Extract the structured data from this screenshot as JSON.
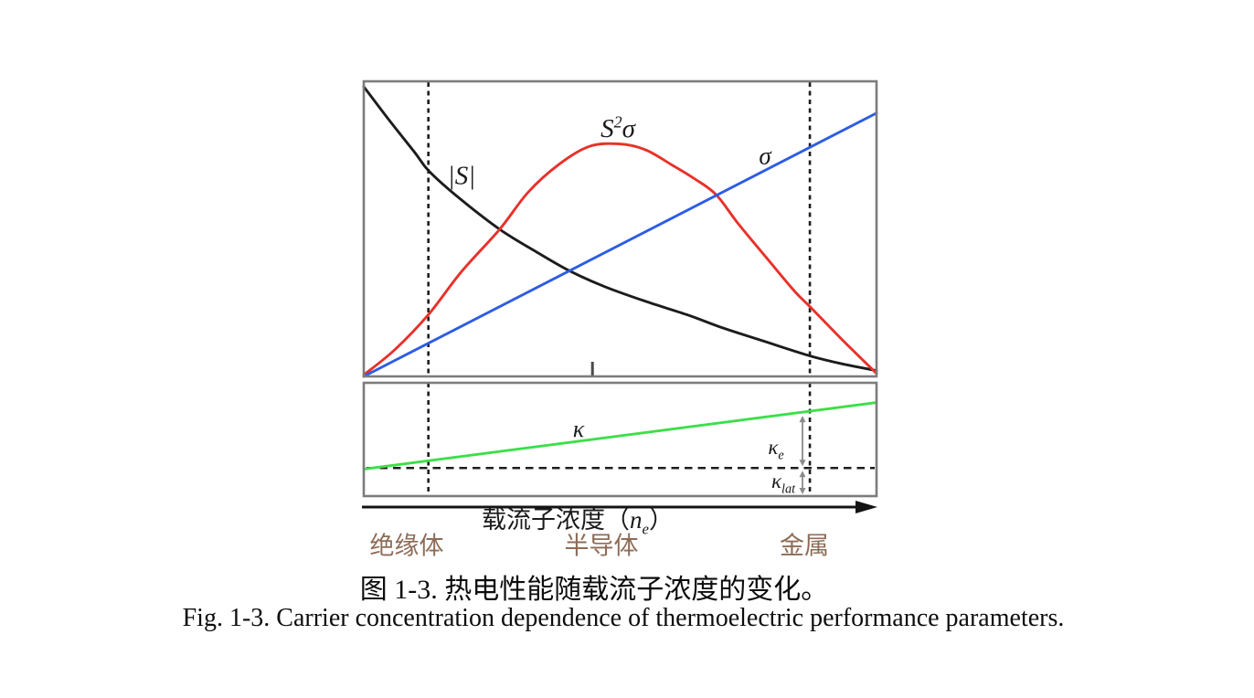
{
  "figure": {
    "caption_zh": "图 1-3. 热电性能随载流子浓度的变化。",
    "caption_en": "Fig. 1-3. Carrier concentration dependence of thermoelectric performance parameters."
  },
  "axis": {
    "xlabel_text": "载流子浓度",
    "paren_open": "（",
    "symbol": "n",
    "symbol_sub": "e",
    "paren_close": "）",
    "region_color": "#8e6c57",
    "regions": [
      {
        "label": "绝缘体"
      },
      {
        "label": "半导体"
      },
      {
        "label": "金属"
      }
    ]
  },
  "curve_labels": {
    "seebeck": "|S|",
    "power_factor": {
      "base": "S",
      "sup": "2",
      "sigma": "σ"
    },
    "sigma": "σ",
    "kappa": "κ",
    "kappa_e": {
      "base": "κ",
      "sub": "e"
    },
    "kappa_lat": {
      "base": "κ",
      "sub": "lat"
    }
  },
  "chart_data": {
    "type": "line",
    "title": "图 1-3. 热电性能随载流子浓度的变化。",
    "title_en": "Fig. 1-3. Carrier concentration dependence of thermoelectric performance parameters.",
    "xlabel": "载流子浓度（n_e）",
    "ylabel": "",
    "units": "schematic, normalized 0–1; no numeric ticks shown",
    "grid": false,
    "legend": "labels placed next to curves",
    "x_regions": [
      {
        "label": "绝缘体",
        "x_range": [
          0,
          0.126
        ]
      },
      {
        "label": "半导体",
        "x_range": [
          0.126,
          0.87
        ]
      },
      {
        "label": "金属",
        "x_range": [
          0.87,
          1
        ]
      }
    ],
    "panels": [
      {
        "id": "top",
        "series_ids": [
          "seebeck",
          "power-factor",
          "sigma"
        ]
      },
      {
        "id": "bottom",
        "series_ids": [
          "kappa"
        ]
      }
    ],
    "series": [
      {
        "id": "seebeck",
        "label": "|S|",
        "panel": "top",
        "color": "#1c1c1c",
        "shape": "monotonic decay",
        "points": [
          [
            0,
            0.985
          ],
          [
            0.05,
            0.87
          ],
          [
            0.1,
            0.76
          ],
          [
            0.126,
            0.7
          ],
          [
            0.18,
            0.615
          ],
          [
            0.265,
            0.5
          ],
          [
            0.335,
            0.425
          ],
          [
            0.4,
            0.36
          ],
          [
            0.47,
            0.305
          ],
          [
            0.55,
            0.255
          ],
          [
            0.63,
            0.21
          ],
          [
            0.7,
            0.165
          ],
          [
            0.78,
            0.12
          ],
          [
            0.87,
            0.07
          ],
          [
            0.94,
            0.04
          ],
          [
            1,
            0.02
          ]
        ]
      },
      {
        "id": "power-factor",
        "label": "S²σ",
        "panel": "top",
        "color": "#e8312a",
        "shape": "bell peak at x≈0.45",
        "points": [
          [
            0,
            0.005
          ],
          [
            0.06,
            0.09
          ],
          [
            0.126,
            0.21
          ],
          [
            0.19,
            0.355
          ],
          [
            0.265,
            0.5
          ],
          [
            0.32,
            0.625
          ],
          [
            0.38,
            0.72
          ],
          [
            0.44,
            0.782
          ],
          [
            0.5,
            0.79
          ],
          [
            0.55,
            0.77
          ],
          [
            0.6,
            0.72
          ],
          [
            0.645,
            0.672
          ],
          [
            0.687,
            0.618
          ],
          [
            0.73,
            0.52
          ],
          [
            0.787,
            0.4
          ],
          [
            0.84,
            0.29
          ],
          [
            0.872,
            0.234
          ],
          [
            0.93,
            0.13
          ],
          [
            1,
            0.01
          ]
        ]
      },
      {
        "id": "sigma",
        "label": "σ",
        "panel": "top",
        "color": "#2d5ce4",
        "shape": "linear increasing",
        "points": [
          [
            0,
            0.0
          ],
          [
            1,
            0.895
          ]
        ]
      },
      {
        "id": "kappa",
        "label": "κ",
        "panel": "bottom",
        "color": "#3cdf49",
        "shape": "linear increasing",
        "points": [
          [
            0,
            0.238
          ],
          [
            1,
            0.826
          ]
        ]
      }
    ],
    "reference_lines": {
      "vertical_x": [
        0.126,
        0.87
      ],
      "kappa_lat_level_y": 0.248,
      "optimum_tick_x": 0.446
    },
    "annotations": [
      {
        "id": "kappa-e",
        "label": "κe",
        "x": 0.856,
        "from": "κ line",
        "to": "κlat dashed level"
      },
      {
        "id": "kappa-lat",
        "label": "κlat",
        "x": 0.856,
        "from": "κlat dashed level",
        "to": "x-axis"
      }
    ]
  }
}
